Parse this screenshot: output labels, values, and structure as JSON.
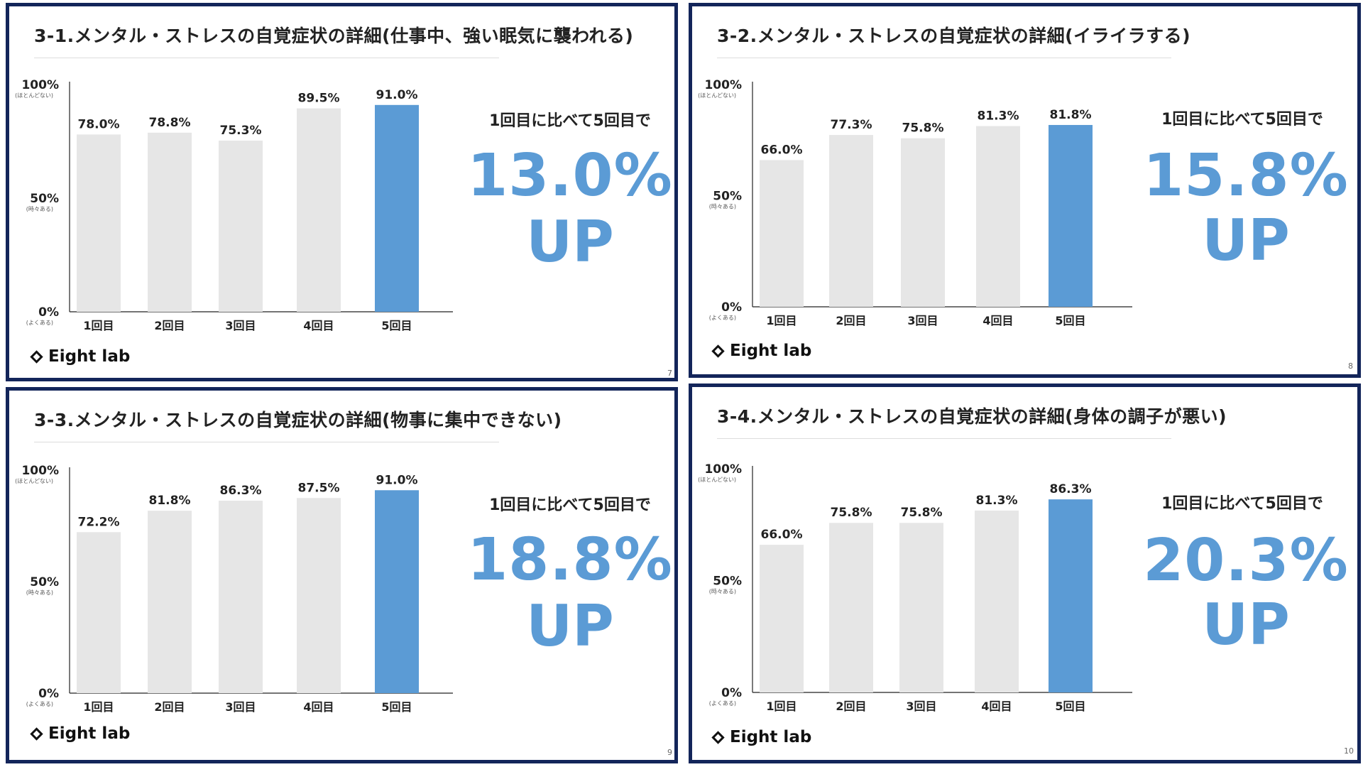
{
  "slides": [
    {
      "title": "3-1.メンタル・ストレスの自覚症状の詳細(仕事中、強い眠気に襲われる)",
      "compare_label": "1回目に比べて5回目で",
      "increase": "13.0%",
      "up_label": "UP",
      "logo": "Eight lab",
      "page_number": "7"
    },
    {
      "title": "3-2.メンタル・ストレスの自覚症状の詳細(イライラする)",
      "compare_label": "1回目に比べて5回目で",
      "increase": "15.8%",
      "up_label": "UP",
      "logo": "Eight lab",
      "page_number": "8"
    },
    {
      "title": "3-3.メンタル・ストレスの自覚症状の詳細(物事に集中できない)",
      "compare_label": "1回目に比べて5回目で",
      "increase": "18.8%",
      "up_label": "UP",
      "logo": "Eight lab",
      "page_number": "9"
    },
    {
      "title": "3-4.メンタル・ストレスの自覚症状の詳細(身体の調子が悪い)",
      "compare_label": "1回目に比べて5回目で",
      "increase": "20.3%",
      "up_label": "UP",
      "logo": "Eight lab",
      "page_number": "10"
    }
  ],
  "colors": {
    "frame": "#13255a",
    "bar_default": "#e6e6e6",
    "bar_highlight": "#5b9bd5",
    "accent_text": "#5b9bd5"
  },
  "chart_data": [
    {
      "type": "bar",
      "categories": [
        "1回目",
        "2回目",
        "3回目",
        "4回目",
        "5回目"
      ],
      "values": [
        78.0,
        78.8,
        75.3,
        89.5,
        91.0
      ],
      "value_labels": [
        "78.0%",
        "78.8%",
        "75.3%",
        "89.5%",
        "91.0%"
      ],
      "highlight_index": 4,
      "ylim": [
        0,
        100
      ],
      "yticks": [
        {
          "value": 100,
          "label": "100%",
          "sub": "(ほとんどない)"
        },
        {
          "value": 50,
          "label": "50%",
          "sub": "(時々ある)"
        },
        {
          "value": 0,
          "label": "0%",
          "sub": "(よくある)"
        }
      ],
      "grid": false,
      "legend": "none"
    },
    {
      "type": "bar",
      "categories": [
        "1回目",
        "2回目",
        "3回目",
        "4回目",
        "5回目"
      ],
      "values": [
        66.0,
        77.3,
        75.8,
        81.3,
        81.8
      ],
      "value_labels": [
        "66.0%",
        "77.3%",
        "75.8%",
        "81.3%",
        "81.8%"
      ],
      "highlight_index": 4,
      "ylim": [
        0,
        100
      ],
      "yticks": [
        {
          "value": 100,
          "label": "100%",
          "sub": "(ほとんどない)"
        },
        {
          "value": 50,
          "label": "50%",
          "sub": "(時々ある)"
        },
        {
          "value": 0,
          "label": "0%",
          "sub": "(よくある)"
        }
      ],
      "grid": false,
      "legend": "none"
    },
    {
      "type": "bar",
      "categories": [
        "1回目",
        "2回目",
        "3回目",
        "4回目",
        "5回目"
      ],
      "values": [
        72.2,
        81.8,
        86.3,
        87.5,
        91.0
      ],
      "value_labels": [
        "72.2%",
        "81.8%",
        "86.3%",
        "87.5%",
        "91.0%"
      ],
      "highlight_index": 4,
      "ylim": [
        0,
        100
      ],
      "yticks": [
        {
          "value": 100,
          "label": "100%",
          "sub": "(ほとんどない)"
        },
        {
          "value": 50,
          "label": "50%",
          "sub": "(時々ある)"
        },
        {
          "value": 0,
          "label": "0%",
          "sub": "(よくある)"
        }
      ],
      "grid": false,
      "legend": "none"
    },
    {
      "type": "bar",
      "categories": [
        "1回目",
        "2回目",
        "3回目",
        "4回目",
        "5回目"
      ],
      "values": [
        66.0,
        75.8,
        75.8,
        81.3,
        86.3
      ],
      "value_labels": [
        "66.0%",
        "75.8%",
        "75.8%",
        "81.3%",
        "86.3%"
      ],
      "highlight_index": 4,
      "ylim": [
        0,
        100
      ],
      "yticks": [
        {
          "value": 100,
          "label": "100%",
          "sub": "(ほとんどない)"
        },
        {
          "value": 50,
          "label": "50%",
          "sub": "(時々ある)"
        },
        {
          "value": 0,
          "label": "0%",
          "sub": "(よくある)"
        }
      ],
      "grid": false,
      "legend": "none"
    }
  ]
}
